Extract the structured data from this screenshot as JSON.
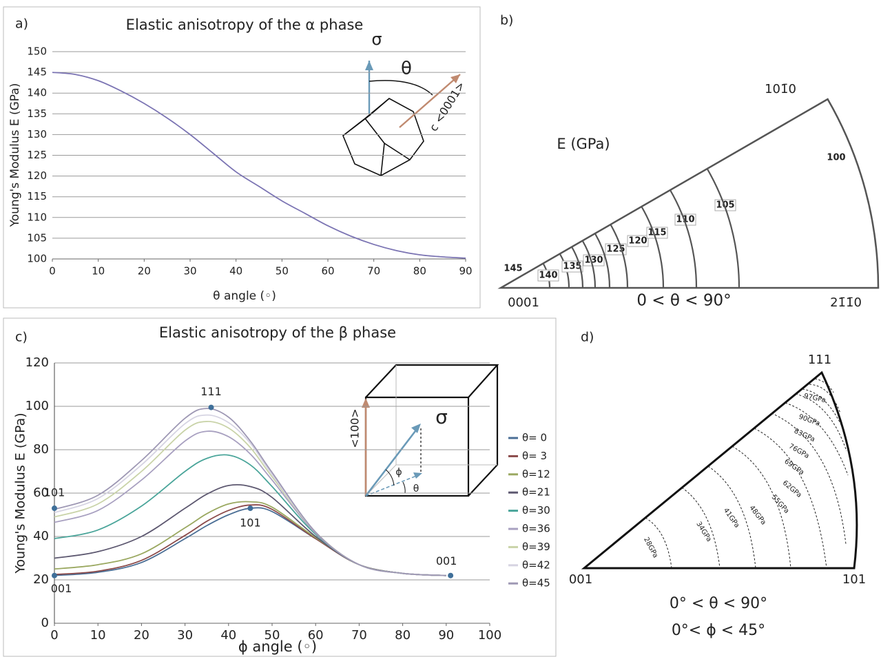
{
  "chart_data": [
    {
      "type": "line",
      "label": "a)",
      "title": "Elastic anisotropy of the α phase",
      "xlabel": "θ angle (◦)",
      "ylabel": "Young's Modulus E (GPa)",
      "x": [
        0,
        5,
        10,
        15,
        20,
        25,
        30,
        35,
        40,
        45,
        50,
        55,
        60,
        65,
        70,
        75,
        80,
        85,
        90
      ],
      "series": [
        {
          "color": "#7b74b3",
          "values": [
            145,
            144.5,
            143,
            140.5,
            137.5,
            134,
            130,
            125.5,
            121,
            117.5,
            114,
            111,
            108,
            105.5,
            103.5,
            102,
            101,
            100.5,
            100.2
          ]
        }
      ],
      "xlim": [
        0,
        90
      ],
      "ylim": [
        100,
        150
      ],
      "xticks": [
        0,
        10,
        20,
        30,
        40,
        50,
        60,
        70,
        80,
        90
      ],
      "yticks": [
        100,
        105,
        110,
        115,
        120,
        125,
        130,
        135,
        140,
        145,
        150
      ],
      "grid": true,
      "annotations": [
        "σ",
        "θ",
        "c <0001>"
      ]
    },
    {
      "type": "contour",
      "label": "b)",
      "title": "E (GPa)",
      "subtitle": [
        "0 < θ < 90°"
      ],
      "corners": [
        "0001",
        "21̄1̄0",
        "101̄0"
      ],
      "levels": [
        145,
        140,
        135,
        130,
        125,
        120,
        115,
        110,
        105,
        100
      ]
    },
    {
      "type": "line",
      "label": "c)",
      "title": "Elastic anisotropy of the β phase",
      "xlabel": "ϕ angle (◦)",
      "ylabel": "Young's Modulus E (GPa)",
      "x": [
        0,
        10,
        20,
        30,
        35,
        40,
        45,
        50,
        60,
        70,
        80,
        90
      ],
      "series": [
        {
          "name": "θ= 0",
          "color": "#4a6e95",
          "values": [
            22,
            23.5,
            28,
            39,
            45,
            50,
            53,
            51.5,
            39,
            27,
            23,
            22
          ]
        },
        {
          "name": "θ= 3",
          "color": "#8b4a4a",
          "values": [
            22.5,
            24,
            29,
            40.5,
            47,
            52,
            54.5,
            52.5,
            39,
            27,
            23,
            22
          ]
        },
        {
          "name": "θ=12",
          "color": "#9aa860",
          "values": [
            25,
            27,
            32,
            44,
            50.5,
            55,
            56,
            53.5,
            39.5,
            27,
            23,
            22
          ]
        },
        {
          "name": "θ=21",
          "color": "#5d5870",
          "values": [
            30,
            33,
            40,
            53,
            59.5,
            63.5,
            63,
            58,
            40,
            27,
            23,
            22
          ]
        },
        {
          "name": "θ=30",
          "color": "#4aa59a",
          "values": [
            39,
            43,
            54,
            70,
            76,
            77.5,
            73,
            63,
            41,
            27,
            23,
            22
          ]
        },
        {
          "name": "θ=36",
          "color": "#a8a0c0",
          "values": [
            46.5,
            52,
            66,
            84,
            88.5,
            86,
            78,
            66,
            41.5,
            27,
            23,
            22
          ]
        },
        {
          "name": "θ=39",
          "color": "#c9d3a8",
          "values": [
            49,
            55,
            70,
            89,
            93,
            90,
            81,
            67.5,
            42,
            27,
            23,
            22
          ]
        },
        {
          "name": "θ=42",
          "color": "#d6d4e2",
          "values": [
            51,
            57.5,
            73,
            92,
            96,
            92.5,
            83,
            68.5,
            42,
            27,
            23,
            22
          ]
        },
        {
          "name": "θ=45",
          "color": "#9e98b4",
          "values": [
            52.5,
            59,
            75,
            94.5,
            99,
            95,
            84,
            69.5,
            42,
            27,
            23,
            22
          ]
        }
      ],
      "xlim": [
        0,
        100
      ],
      "ylim": [
        0,
        120
      ],
      "xticks": [
        0,
        10,
        20,
        30,
        40,
        50,
        60,
        70,
        80,
        90,
        100
      ],
      "yticks": [
        0,
        20,
        40,
        60,
        80,
        100,
        120
      ],
      "grid": true,
      "legend": "right",
      "points": [
        {
          "label": "101",
          "x": 0,
          "y": 53
        },
        {
          "label": "111",
          "x": 36,
          "y": 99.5
        },
        {
          "label": "101",
          "x": 45,
          "y": 53
        },
        {
          "label": "001",
          "x": 0,
          "y": 22
        },
        {
          "label": "001",
          "x": 91,
          "y": 22
        }
      ],
      "annotations": [
        "<100>",
        "σ",
        "ϕ",
        "θ"
      ]
    },
    {
      "type": "contour",
      "label": "d)",
      "subtitle": [
        "0° < θ < 90°",
        "0°< ϕ < 45°"
      ],
      "corners": [
        "001",
        "101",
        "111"
      ],
      "levels": [
        28,
        34,
        41,
        48,
        55,
        62,
        69,
        76,
        83,
        90,
        97
      ],
      "value_labels": [
        "28GPa",
        "34GPa",
        "41GPa",
        "48GPa",
        "55GPa",
        "62GPa",
        "69GPa",
        "76GPa",
        "83GPa",
        "90GPa",
        "97GPa"
      ]
    }
  ]
}
